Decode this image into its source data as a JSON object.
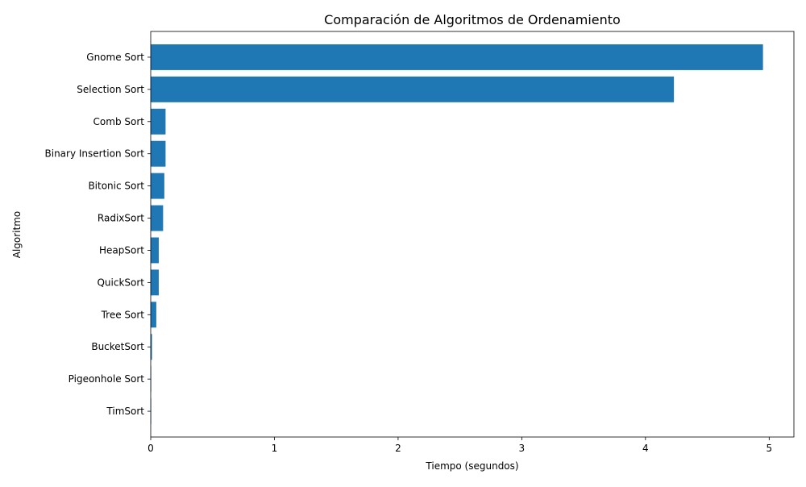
{
  "chart_data": {
    "type": "bar",
    "orientation": "horizontal",
    "title": "Comparación de Algoritmos de Ordenamiento",
    "xlabel": "Tiempo (segundos)",
    "ylabel": "Algoritmo",
    "categories": [
      "Gnome Sort",
      "Selection Sort",
      "Comb Sort",
      "Binary Insertion Sort",
      "Bitonic Sort",
      "RadixSort",
      "HeapSort",
      "QuickSort",
      "Tree Sort",
      "BucketSort",
      "Pigeonhole Sort",
      "TimSort"
    ],
    "values": [
      4.95,
      4.23,
      0.12,
      0.12,
      0.11,
      0.1,
      0.065,
      0.065,
      0.045,
      0.01,
      0.002,
      0.001
    ],
    "xlim": [
      0,
      5.2
    ],
    "xticks": [
      "0",
      "1",
      "2",
      "3",
      "4",
      "5"
    ],
    "grid": false,
    "legend": "none",
    "bar_color": "#1f77b4"
  }
}
